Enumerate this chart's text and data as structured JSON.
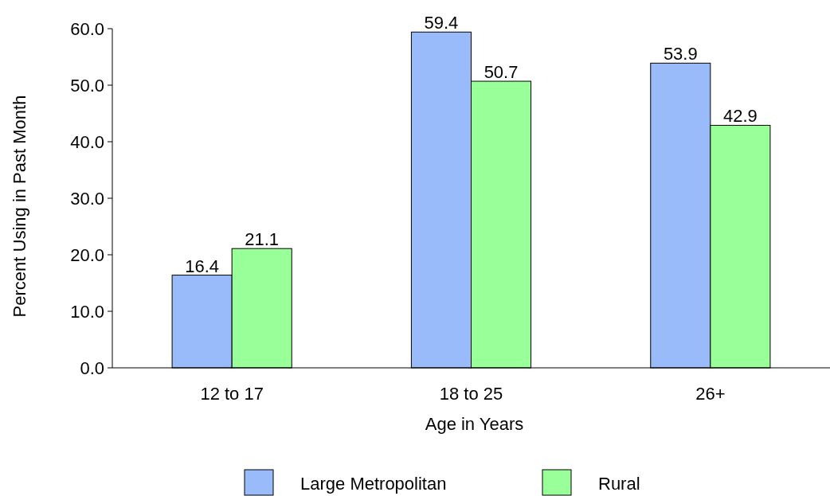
{
  "chart_data": {
    "type": "bar",
    "xlabel": "Age in Years",
    "ylabel": "Percent Using in Past Month",
    "categories": [
      "12 to 17",
      "18 to 25",
      "26+"
    ],
    "series": [
      {
        "name": "Large Metropolitan",
        "color": "#99bbfa",
        "values": [
          16.4,
          59.4,
          53.9
        ]
      },
      {
        "name": "Rural",
        "color": "#99ff99",
        "values": [
          21.1,
          50.7,
          42.9
        ]
      }
    ],
    "ylim": [
      0,
      60
    ],
    "yticks": [
      {
        "value": 0,
        "label": "0.0"
      },
      {
        "value": 10,
        "label": "10.0"
      },
      {
        "value": 20,
        "label": "20.0"
      },
      {
        "value": 30,
        "label": "30.0"
      },
      {
        "value": 40,
        "label": "40.0"
      },
      {
        "value": 50,
        "label": "50.0"
      },
      {
        "value": 60,
        "label": "60.0"
      }
    ],
    "data_labels": true,
    "legend": "bottom",
    "grid": false
  }
}
